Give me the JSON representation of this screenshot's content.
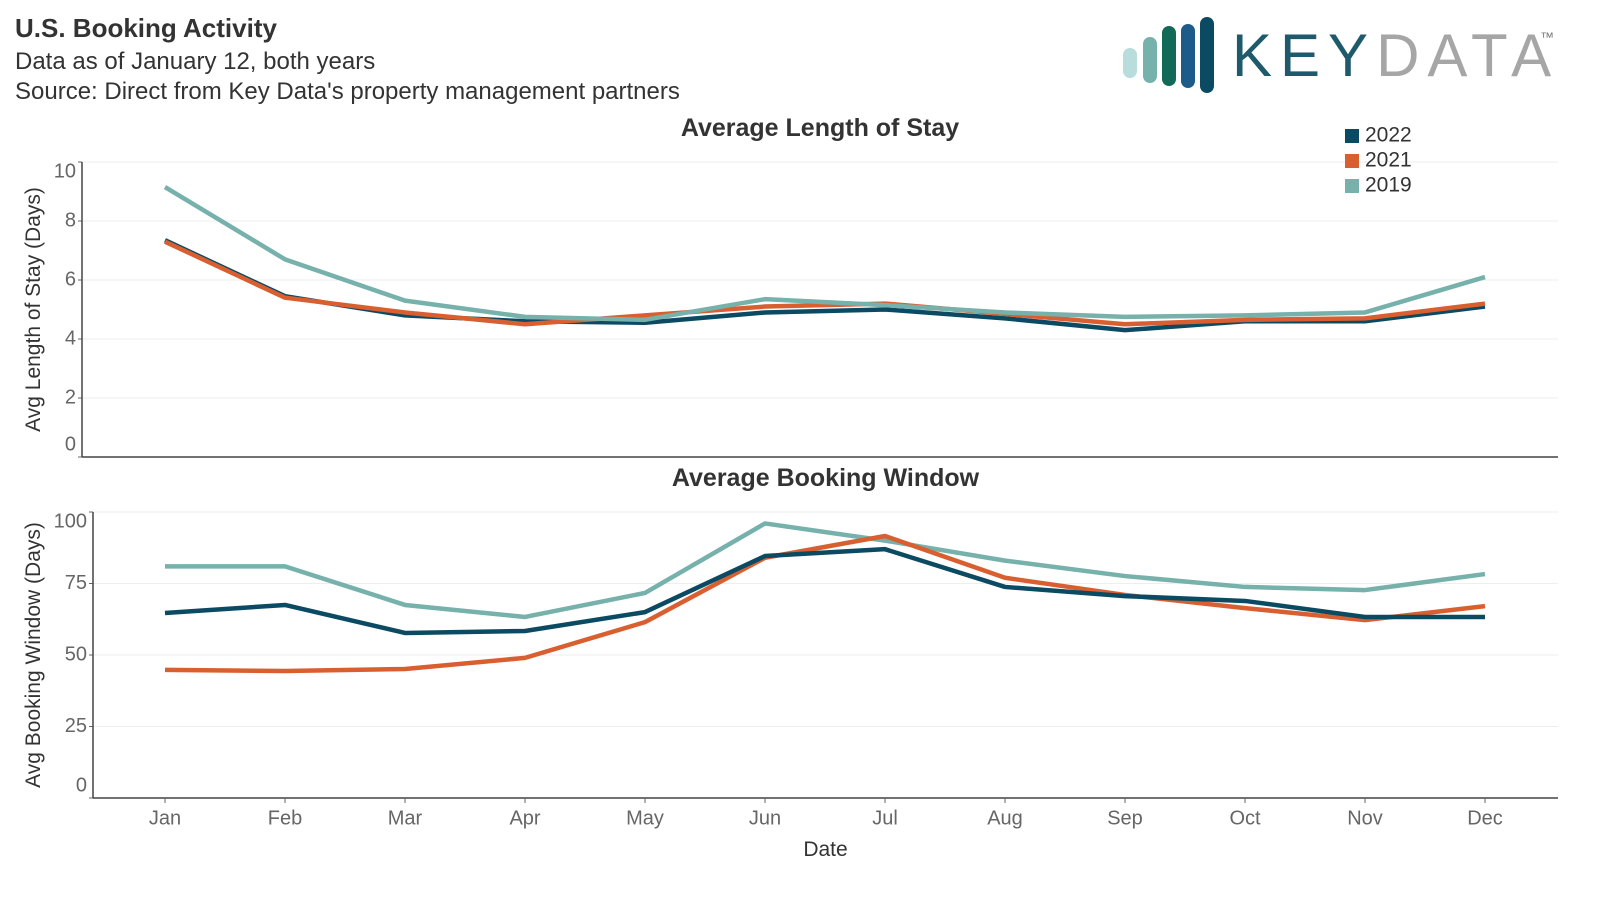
{
  "header": {
    "title": "U.S. Booking Activity",
    "subtitle": "Data as of January 12, both years",
    "source": "Source: Direct from Key Data's property management partners"
  },
  "logo": {
    "key": "KEY",
    "data": "DATA",
    "trademark": "™"
  },
  "chart_data": [
    {
      "type": "line",
      "title": "Average Length of Stay",
      "ylabel": "Avg Length of Stay (Days)",
      "ylim": [
        0,
        10
      ],
      "yticks": [
        0,
        2,
        4,
        6,
        8,
        10
      ],
      "grid": true,
      "legend": "top-right",
      "series": [
        {
          "name": "2022",
          "color": "#0b4a63",
          "values": [
            7.35,
            5.45,
            4.8,
            4.6,
            4.55,
            4.9,
            5.0,
            4.7,
            4.3,
            4.6,
            4.6,
            5.1
          ]
        },
        {
          "name": "2021",
          "color": "#d95f30",
          "values": [
            7.3,
            5.4,
            4.9,
            4.5,
            4.8,
            5.1,
            5.2,
            4.85,
            4.5,
            4.65,
            4.7,
            5.2
          ]
        },
        {
          "name": "2019",
          "color": "#76b1ab",
          "values": [
            9.15,
            6.7,
            5.3,
            4.75,
            4.65,
            5.35,
            5.15,
            4.9,
            4.75,
            4.8,
            4.9,
            6.1
          ]
        }
      ]
    },
    {
      "type": "line",
      "title": "Average Booking Window",
      "ylabel": "Avg Booking Window (Days)",
      "xlabel": "Date",
      "categories": [
        "Jan",
        "Feb",
        "Mar",
        "Apr",
        "May",
        "Jun",
        "Jul",
        "Aug",
        "Sep",
        "Oct",
        "Nov",
        "Dec"
      ],
      "ylim": [
        0,
        100
      ],
      "yticks": [
        0,
        25,
        50,
        75,
        100
      ],
      "grid": true,
      "series": [
        {
          "color": "#76b1ab",
          "values": [
            81,
            81,
            67.5,
            63.3,
            71.7,
            96,
            90,
            83,
            77.6,
            73.8,
            72.7,
            78.3
          ]
        },
        {
          "color": "#d95f30",
          "values": [
            44.8,
            44.4,
            45.1,
            49,
            61.5,
            84,
            91.6,
            77,
            71,
            66.4,
            62.2,
            67.1
          ]
        },
        {
          "color": "#0b4a63",
          "values": [
            64.7,
            67.5,
            57.7,
            58.4,
            65,
            84.6,
            87,
            73.8,
            70.6,
            68.9,
            63.3,
            63.3
          ]
        }
      ]
    }
  ]
}
